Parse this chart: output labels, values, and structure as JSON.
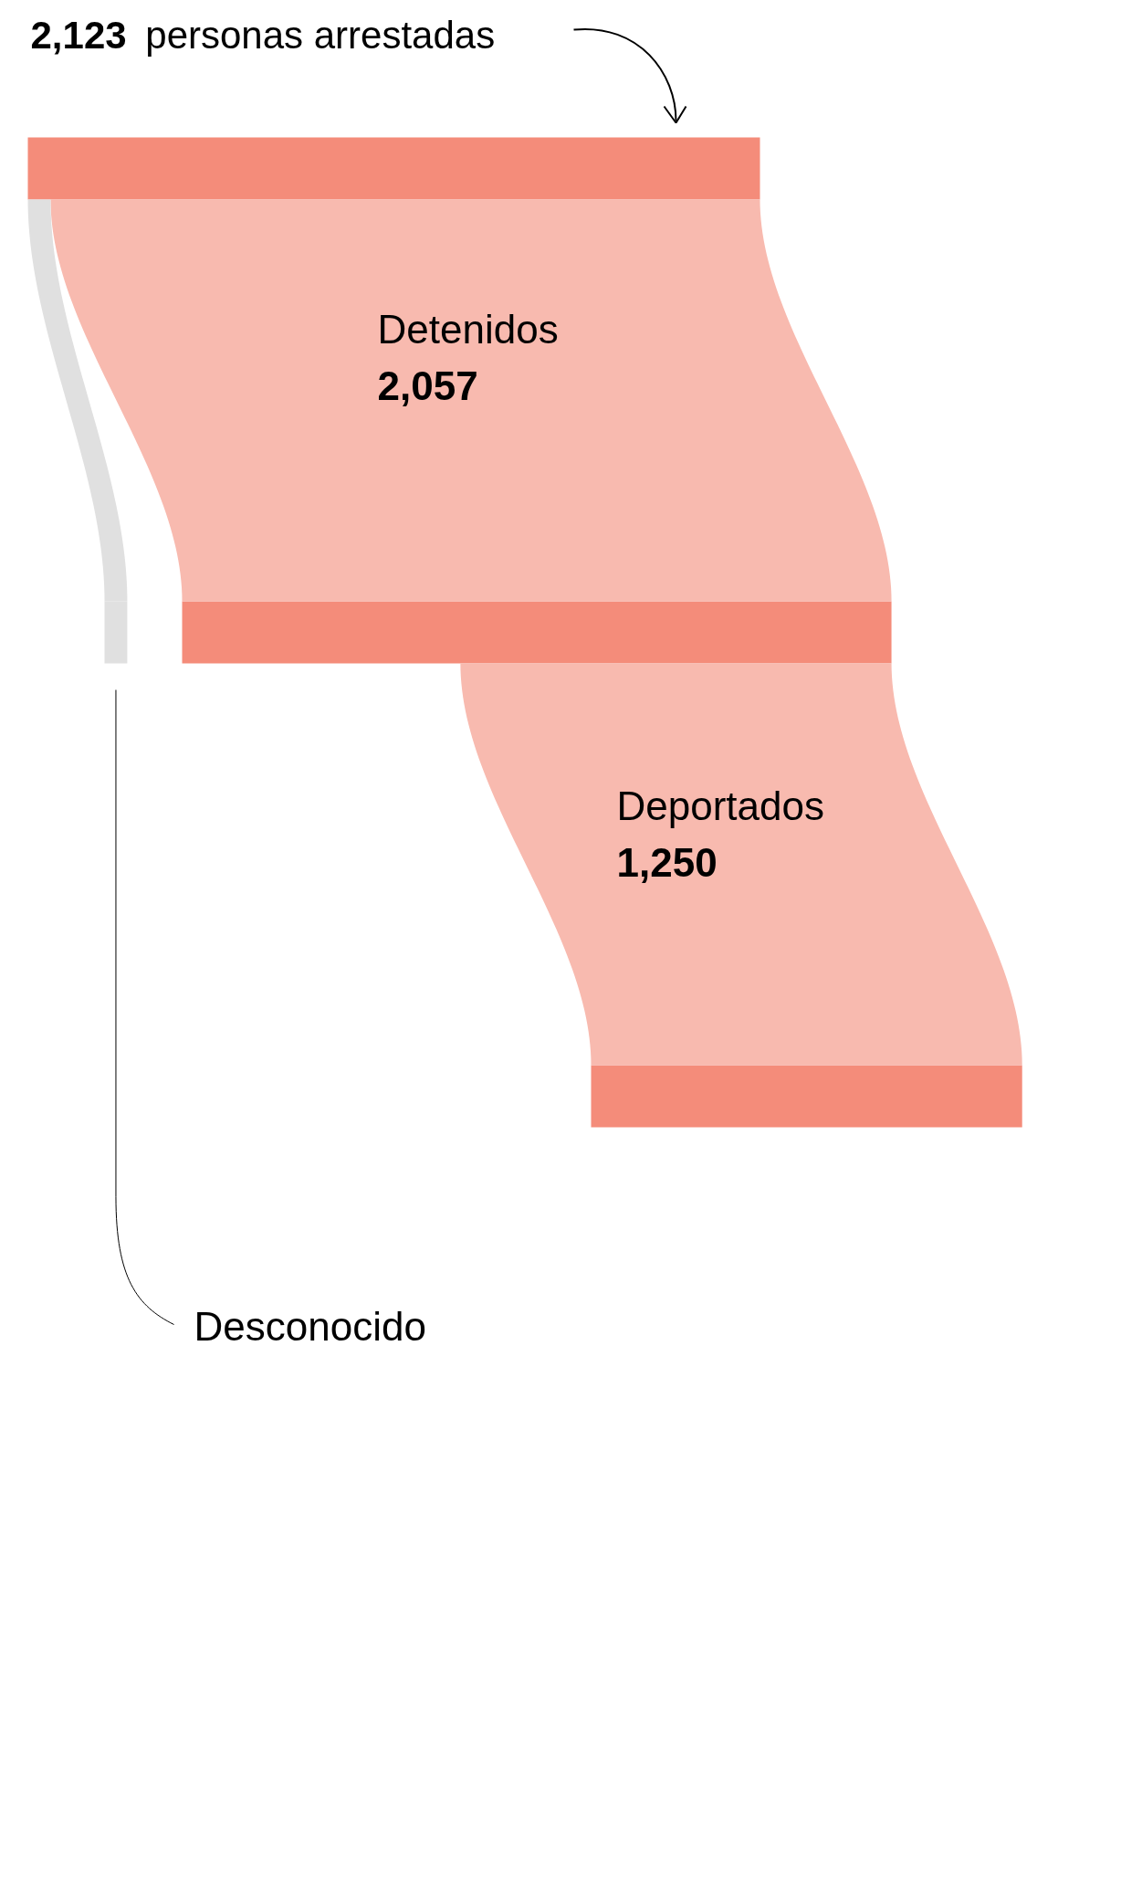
{
  "chart_data": {
    "type": "other",
    "categories": [
      "personas arrestadas",
      "Detenidos",
      "Deportados",
      "Desconocido"
    ],
    "values": [
      2123,
      2057,
      1250,
      null
    ],
    "value_labels": [
      "2,123",
      "2,057",
      "1,250",
      null
    ],
    "colors": [
      "#f48c7a",
      "#f8baaf",
      "#f8baaf",
      "#e0e0e0"
    ]
  }
}
